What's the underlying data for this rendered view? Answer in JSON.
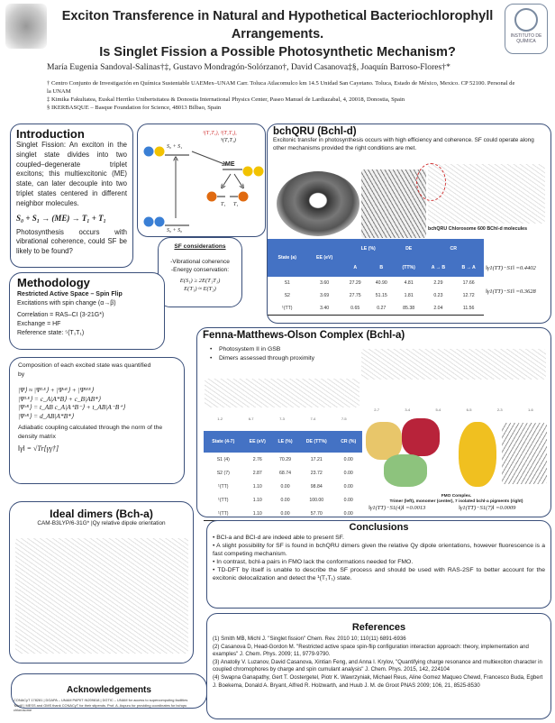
{
  "header": {
    "title_lines": [
      "Exciton Transference in Natural and Hypothetical Bacteriochlorophyll",
      "Arrangements.",
      "Is Singlet Fission a Possible Photosynthetic Mechanism?"
    ],
    "authors": "María Eugenia Sandoval-Salinas†‡, Gustavo Mondragón-Solórzano†, David Casanova‡§, Joaquín Barroso-Flores†*",
    "affiliations": [
      "† Centro Conjunto de Investigación en Química Sustentable UAEMex–UNAM Carr. Toluca Atlacomulco km 14.5 Unidad San Cayetano. Toluca, Estado de México, Mexico. CP 52100. Personal de la UNAM",
      "‡ Kimika Fakultatea, Euskal Herriko Unibertsitatea & Donostia International Physics Center, Paseo Manuel de Lardiazabal, 4, 20018, Donostia, Spain",
      "§ IKERBASQUE – Basque Foundation for Science, 48013 Bilbao, Spain"
    ],
    "right_logo_text": "INSTITUTO DE QUÍMICA"
  },
  "intro": {
    "title": "Introduction",
    "text": "Singlet Fission: An exciton in the singlet state divides into two coupled–degenerate triplet excitons; this multiexcitonic (ME) state, can later decouple into two triplet states centered in different neighbor molecules.",
    "equation": "S₀ + S₁ → (ME) → T₁ + T₁",
    "text2": "Photosynthesis occurs with vibrational coherence, could SF be likely to be found?"
  },
  "diagram": {
    "s0s1": "S₀ + S₁",
    "s0s0": "S₀ + S₀",
    "me": "ME",
    "tt_states": "¹(T₁T₁), ³(T₁T₁),",
    "tt_states2": "⁵(T₁T₁)",
    "t1a": "T₁",
    "t1b": "T₁",
    "colors": {
      "blue": "#3a7fd5",
      "yellow": "#f2c200",
      "orange": "#e06a10",
      "red": "#d03030"
    }
  },
  "sf": {
    "title": "SF considerations",
    "items": [
      "-Vibrational coherence",
      "-Energy conservation:"
    ],
    "eq1": "E(S₁) ≥ 2E(T₁T₁)",
    "eq2": "E(T₁) ≈ E(T₂)"
  },
  "methodology": {
    "title": "Methodology",
    "subtitle": "Restricted Active Space – Spin Flip",
    "lines": [
      "Excitations with spin change (α→β)",
      "Correlation = RAS–CI (3-21G*)",
      "Exchange = HF",
      "Reference state: ⁵(T₁T₁)"
    ]
  },
  "composition": {
    "intro": "Composition of each excited state was quantified by",
    "equations": [
      "|Ψ⟩ ≈ |Ψᴸᴱ⟩ + |Ψᶜᴿ⟩ + |Ψᴹᴱ⟩",
      "|Ψᴸᴱ⟩ = c_A|A*B⟩ + c_B|AB*⟩",
      "|Ψᶜᴿ⟩ = t_AB c_A|A⁺B⁻⟩ + t_AB|A⁻B⁺⟩",
      "|Ψᶜᴿ⟩ = d_AB|A*B*⟩"
    ],
    "text": "Adiabatic coupling calculated through the norm of the density matrix",
    "norm": "‖γ‖ = √Tr[γγ†]"
  },
  "bchqru": {
    "title": "bchQRU (Bchl-d)",
    "text": "Excitonic transfer in photosynthesis occurs with high efficiency and coherence. SF could operate along other mechanisms provided the right conditions are met.",
    "caption": "bchQRU Chlorosome 600 BChl-d molecules",
    "headers": [
      "State (a)",
      "EE (eV)",
      "LE (%)",
      "DE",
      "CR"
    ],
    "subheaders": [
      "",
      "",
      "A",
      "B",
      "(TT%)",
      "A → B",
      "B → A"
    ],
    "rows": [
      [
        "S1",
        "3.60",
        "27.29",
        "40.90",
        "4.81",
        "2.29",
        "17.66"
      ],
      [
        "S2",
        "3.69",
        "27.75",
        "51.15",
        "1.81",
        "0.23",
        "12.72"
      ],
      [
        "¹(TT)",
        "3.40",
        "0.65",
        "0.27",
        "85.38",
        "2.04",
        "11.56"
      ]
    ],
    "couplings": [
      "‖γ1(TT)−S1‖ =0.4402",
      "‖γ1(TT)−S1‖ =0.3628"
    ]
  },
  "fmo": {
    "title": "Fenna-Matthews-Olson Complex (Bchl-a)",
    "bullets": [
      "Photosystem II in GSB",
      "Dimers assessed through proximity"
    ],
    "headers": [
      "State (4-7)",
      "EE (eV)",
      "LE (%)",
      "DE (TT%)",
      "CR (%)"
    ],
    "rows": [
      [
        "S1 (4)",
        "2.76",
        "70.29",
        "17.21",
        "0.00"
      ],
      [
        "S2 (7)",
        "2.87",
        "68.74",
        "23.72",
        "0.00"
      ],
      [
        "¹(TT)",
        "1.10",
        "0.00",
        "98.84",
        "0.00"
      ],
      [
        "¹(TT)",
        "1.10",
        "0.00",
        "100.00",
        "0.00"
      ],
      [
        "¹(TT)",
        "1.10",
        "0.00",
        "57.70",
        "0.00"
      ]
    ],
    "caption_title": "FMO Complex.",
    "caption": "Trimer (left), monomer (center), 7 isolated bchl-a pigments (right)",
    "couplings": [
      "‖γ1(TT)−S1(4)‖ =0.0013",
      "‖γ1(TT)−S1(7)‖ =0.0009"
    ],
    "pair_labels_left": [
      "1-2",
      "6-7",
      "7-3",
      "7-4",
      "7-5"
    ],
    "pair_labels_right": [
      "2-7",
      "3-4",
      "5-4",
      "6-5",
      "2-3",
      "1-6"
    ]
  },
  "dimers": {
    "title": "Ideal dimers (Bch-a)",
    "subtitle": "CAM-B3LYP/6-31G* |Qy relative dipole orientation"
  },
  "ack": {
    "title": "Acknowledgements",
    "text": "CONACyT 178281 | DGAPA – UNAM PAPIIT IN209818 | DGTIC – UNAM for access to supercomputing facilities 'Miztli' | MESS and GMS thank CONACyT for their stipends. Prof. A. Aspuru for providing coordinates for bchqru chlorosome"
  },
  "conclusions": {
    "title": "Conclusions",
    "items": [
      "• BCl-a and BCl-d are indeed able to present SF.",
      "• A slight possibility for SF is found in bchQRU dimers given the relative Qy dipole orientations, however fluorescence is a fast competing mechanism.",
      "• In contrast, bchl-a pairs in FMO lack the conformations needed for FMO.",
      "• TD-DFT by itself is unable to describe the SF process and should be used with RAS-2SF to better account for the excitonic delocalization and detect the ¹(T₁T₁) state."
    ]
  },
  "references": {
    "title": "References",
    "items": [
      "(1) Smith MB, Michl J. \"Singlet fission\" Chem. Rev. 2010 10; 110(11) 6891-6936",
      "(2) Casanova D, Head-Gordon M. \"Restricted active space spin-flip configuration interaction approach: theory, implementation and examples\" J. Chem. Phys. 2009; 11, 9779-9790.",
      "(3) Anatoliy V. Luzanov, David Casanova, Xintian Feng, and Anna I. Krylov, \"Quantifying charge resonance and multiexciton character in coupled chromophores by charge and spin cumulant analysis\" J. Chem. Phys. 2015, 142, 224104",
      "(4) Swapna Ganapathy, Gert T. Oostergetel, Piotr K. Wawrzyniak, Michael Reus, Aline Gomez Maqueo Chewd, Francesco Buda, Egbert J. Boekema, Donald A. Bryant, Alfred R. Holzwarth, and Huub J. M. de Groot PNAS 2009; 106, 21, 8525-8530"
    ]
  },
  "colors": {
    "border": "#3a4f7a",
    "table_header": "#4472c4"
  }
}
